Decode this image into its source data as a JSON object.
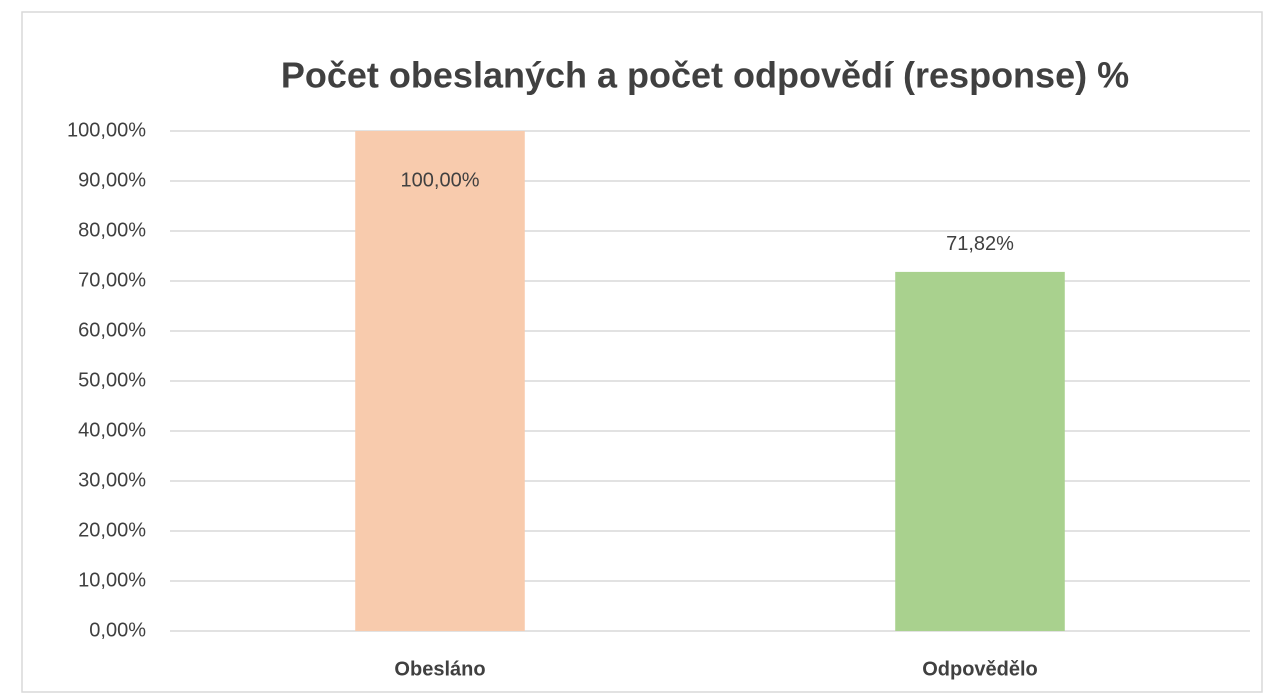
{
  "chart_data": {
    "type": "bar",
    "title": "Počet obeslaných a počet odpovědí (response) %",
    "categories": [
      "Obesláno",
      "Odpovědělo"
    ],
    "values": [
      100,
      71.82
    ],
    "value_labels": [
      "100,00%",
      "71,82%"
    ],
    "colors": [
      "#f8cbad",
      "#a9d18e"
    ],
    "ylim": [
      0,
      100
    ],
    "yticks": [
      {
        "value": 0,
        "label": "0,00%"
      },
      {
        "value": 10,
        "label": "10,00%"
      },
      {
        "value": 20,
        "label": "20,00%"
      },
      {
        "value": 30,
        "label": "30,00%"
      },
      {
        "value": 40,
        "label": "40,00%"
      },
      {
        "value": 50,
        "label": "50,00%"
      },
      {
        "value": 60,
        "label": "60,00%"
      },
      {
        "value": 70,
        "label": "70,00%"
      },
      {
        "value": 80,
        "label": "80,00%"
      },
      {
        "value": 90,
        "label": "90,00%"
      },
      {
        "value": 100,
        "label": "100,00%"
      }
    ],
    "grid": true
  }
}
